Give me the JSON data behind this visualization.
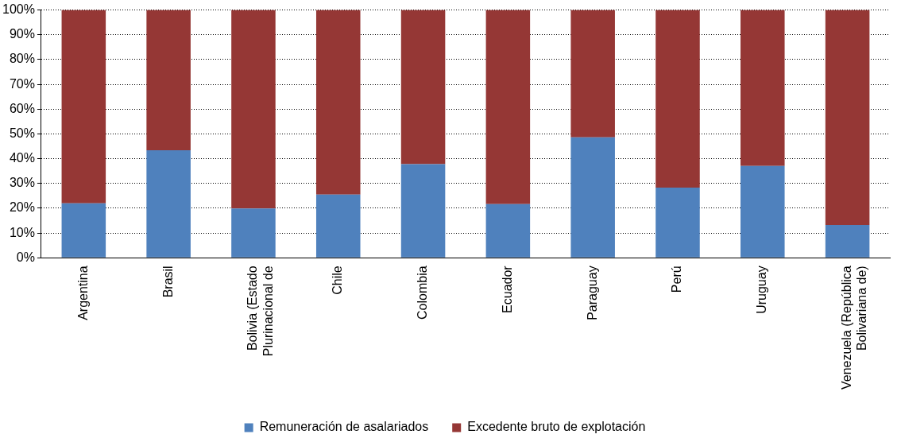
{
  "chart_data": {
    "type": "bar",
    "stacked": true,
    "categories": [
      "Argentina",
      "Brasil",
      "Bolivia (Estado Plurinacional de",
      "Chile",
      "Colombia",
      "Ecuador",
      "Paraguay",
      "Perú",
      "Uruguay",
      "Venezuela (República Bolivariana de)"
    ],
    "series": [
      {
        "name": "Remuneración de asalariados",
        "color": "#4f81bd",
        "values": [
          22,
          43.4,
          19.9,
          25.5,
          37.8,
          21.7,
          48.6,
          28.3,
          37.1,
          13.3
        ]
      },
      {
        "name": "Excedente bruto de explotación",
        "color": "#953735",
        "values": [
          78,
          56.6,
          80.1,
          74.5,
          62.2,
          78.3,
          51.4,
          71.7,
          62.9,
          86.7
        ]
      }
    ],
    "ylim": [
      0,
      100
    ],
    "yticks": [
      {
        "value": 0,
        "label": "0%"
      },
      {
        "value": 10,
        "label": "10%"
      },
      {
        "value": 20,
        "label": "20%"
      },
      {
        "value": 30,
        "label": "30%"
      },
      {
        "value": 40,
        "label": "40%"
      },
      {
        "value": 50,
        "label": "50%"
      },
      {
        "value": 60,
        "label": "60%"
      },
      {
        "value": 70,
        "label": "70%"
      },
      {
        "value": 80,
        "label": "80%"
      },
      {
        "value": 90,
        "label": "90%"
      },
      {
        "value": 100,
        "label": "100%"
      }
    ],
    "grid": "y",
    "legend": "bottom"
  }
}
